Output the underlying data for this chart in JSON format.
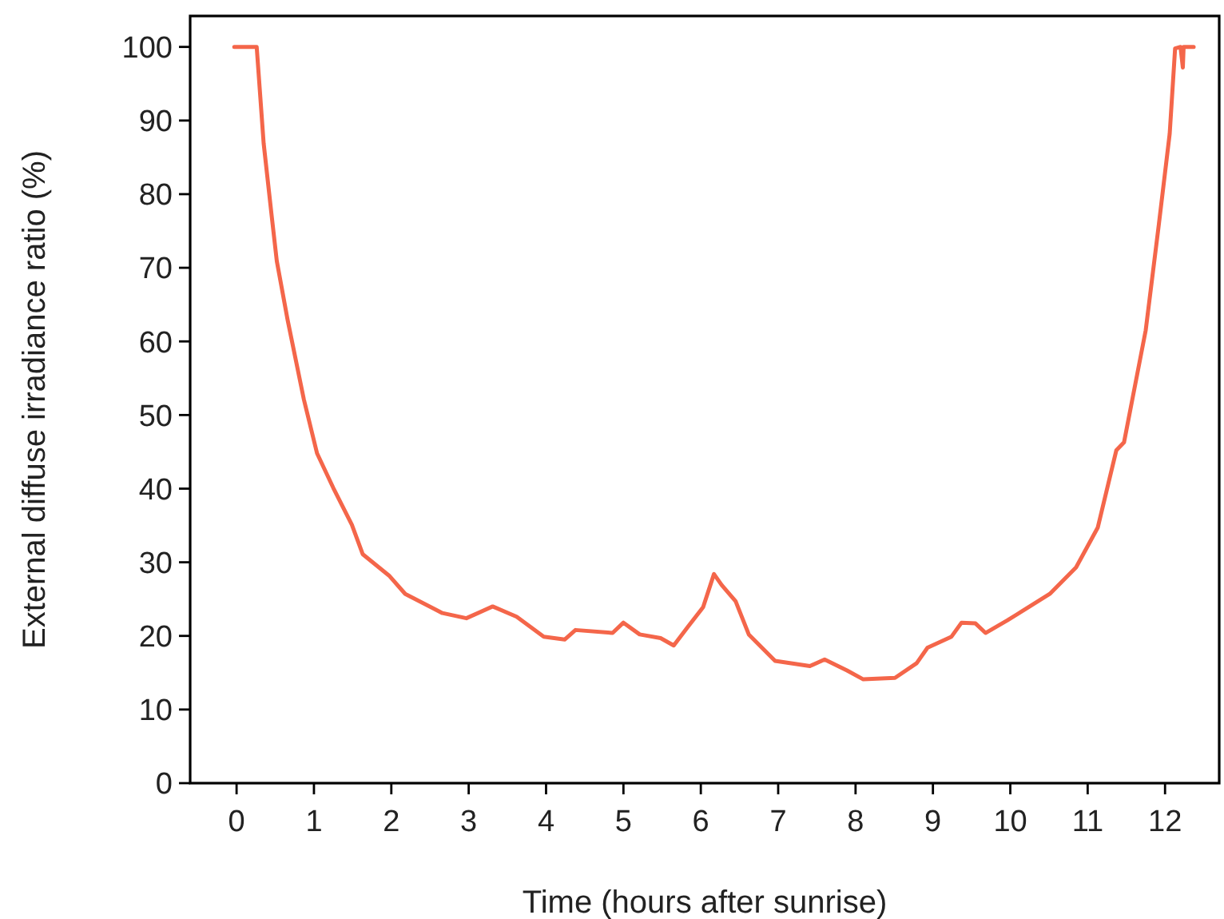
{
  "chart_data": {
    "type": "line",
    "xlabel": "Time (hours after sunrise)",
    "ylabel": "External diffuse irradiance ratio (%)",
    "xlim": [
      -0.6,
      12.7
    ],
    "ylim": [
      0,
      104.2
    ],
    "xticks": [
      0,
      1,
      2,
      3,
      4,
      5,
      6,
      7,
      8,
      9,
      10,
      11,
      12
    ],
    "yticks": [
      0,
      10,
      20,
      30,
      40,
      50,
      60,
      70,
      80,
      90,
      100
    ],
    "grid": false,
    "marker": "none",
    "line_style": "solid",
    "series": [
      {
        "color": "#f4664a",
        "x": [
          -0.03,
          0.26,
          0.35,
          0.45,
          0.52,
          0.66,
          0.87,
          1.04,
          1.25,
          1.49,
          1.63,
          1.97,
          2.18,
          2.66,
          2.97,
          3.31,
          3.62,
          3.97,
          4.24,
          4.38,
          4.86,
          5.0,
          5.21,
          5.48,
          5.65,
          5.83,
          6.03,
          6.17,
          6.27,
          6.45,
          6.62,
          6.96,
          7.41,
          7.6,
          7.89,
          8.1,
          8.51,
          8.79,
          8.93,
          9.24,
          9.37,
          9.55,
          9.68,
          9.96,
          10.51,
          10.85,
          11.13,
          11.37,
          11.47,
          11.75,
          11.92,
          12.06,
          12.13,
          12.2,
          12.23,
          12.24,
          12.37
        ],
        "values": [
          100,
          100,
          86.9,
          77.4,
          70.9,
          62.9,
          52.1,
          44.8,
          40.1,
          35.1,
          31.1,
          28.2,
          25.7,
          23.1,
          22.4,
          24.0,
          22.6,
          19.9,
          19.5,
          20.8,
          20.4,
          21.8,
          20.2,
          19.7,
          18.7,
          21.2,
          23.9,
          28.4,
          26.9,
          24.7,
          20.2,
          16.6,
          15.9,
          16.8,
          15.3,
          14.1,
          14.3,
          16.3,
          18.4,
          19.9,
          21.8,
          21.7,
          20.4,
          22.1,
          25.7,
          29.3,
          34.7,
          45.2,
          46.3,
          61.5,
          75.9,
          88.2,
          99.8,
          100,
          97.2,
          100,
          100
        ]
      }
    ]
  }
}
